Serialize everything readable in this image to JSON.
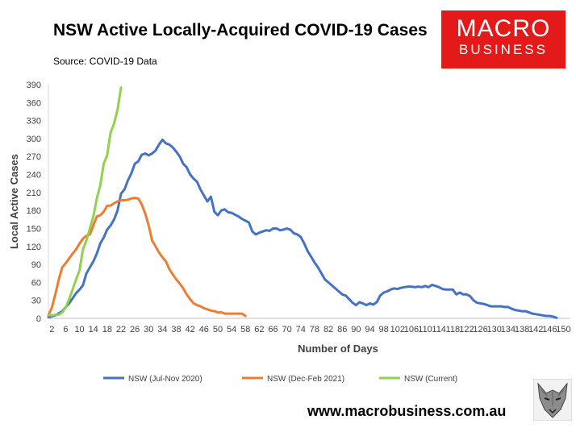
{
  "header": {
    "title": "NSW Active Locally-Acquired COVID-19 Cases",
    "subtitle": "Source: COVID-19 Data"
  },
  "logo": {
    "line1": "MACRO",
    "line2": "BUSINESS"
  },
  "footer": {
    "url": "www.macrobusiness.com.au"
  },
  "chart_data": {
    "type": "line",
    "xlabel": "Number of Days",
    "ylabel": "Local Active Cases",
    "xlim": [
      1,
      152
    ],
    "ylim": [
      0,
      390
    ],
    "y_ticks": [
      0,
      30,
      60,
      90,
      120,
      150,
      180,
      210,
      240,
      270,
      300,
      330,
      360,
      390
    ],
    "x_tick_labels": [
      "2",
      "6",
      "10",
      "14",
      "18",
      "22",
      "26",
      "30",
      "34",
      "38",
      "42",
      "46",
      "50",
      "54",
      "58",
      "62",
      "66",
      "70",
      "74",
      "78",
      "82",
      "86",
      "90",
      "94",
      "98",
      "102",
      "106",
      "110",
      "114",
      "118",
      "122",
      "126",
      "130",
      "134",
      "138",
      "142",
      "146",
      "150"
    ],
    "x_tick_values": [
      2,
      6,
      10,
      14,
      18,
      22,
      26,
      30,
      34,
      38,
      42,
      46,
      50,
      54,
      58,
      62,
      66,
      70,
      74,
      78,
      82,
      86,
      90,
      94,
      98,
      102,
      106,
      110,
      114,
      118,
      122,
      126,
      130,
      134,
      138,
      142,
      146,
      150
    ],
    "grid": false,
    "legend_position": "bottom",
    "series": [
      {
        "name": "NSW (Jul-Nov 2020)",
        "color": "#4472c4",
        "points": [
          [
            1,
            2
          ],
          [
            3,
            5
          ],
          [
            5,
            12
          ],
          [
            7,
            25
          ],
          [
            9,
            42
          ],
          [
            10,
            48
          ],
          [
            11,
            55
          ],
          [
            12,
            75
          ],
          [
            13,
            85
          ],
          [
            14,
            95
          ],
          [
            15,
            108
          ],
          [
            16,
            125
          ],
          [
            17,
            135
          ],
          [
            18,
            148
          ],
          [
            19,
            155
          ],
          [
            20,
            165
          ],
          [
            21,
            180
          ],
          [
            22,
            208
          ],
          [
            23,
            215
          ],
          [
            24,
            230
          ],
          [
            25,
            242
          ],
          [
            26,
            258
          ],
          [
            27,
            262
          ],
          [
            28,
            273
          ],
          [
            29,
            275
          ],
          [
            30,
            272
          ],
          [
            31,
            275
          ],
          [
            32,
            280
          ],
          [
            33,
            290
          ],
          [
            34,
            298
          ],
          [
            35,
            292
          ],
          [
            36,
            290
          ],
          [
            37,
            285
          ],
          [
            38,
            278
          ],
          [
            39,
            270
          ],
          [
            40,
            258
          ],
          [
            41,
            252
          ],
          [
            42,
            240
          ],
          [
            43,
            233
          ],
          [
            44,
            228
          ],
          [
            45,
            215
          ],
          [
            46,
            205
          ],
          [
            47,
            195
          ],
          [
            48,
            203
          ],
          [
            49,
            178
          ],
          [
            50,
            172
          ],
          [
            51,
            180
          ],
          [
            52,
            182
          ],
          [
            53,
            177
          ],
          [
            54,
            176
          ],
          [
            55,
            173
          ],
          [
            56,
            170
          ],
          [
            57,
            166
          ],
          [
            58,
            163
          ],
          [
            59,
            160
          ],
          [
            60,
            145
          ],
          [
            61,
            140
          ],
          [
            62,
            143
          ],
          [
            63,
            145
          ],
          [
            64,
            147
          ],
          [
            65,
            146
          ],
          [
            66,
            150
          ],
          [
            67,
            150
          ],
          [
            68,
            147
          ],
          [
            69,
            148
          ],
          [
            70,
            150
          ],
          [
            71,
            148
          ],
          [
            72,
            142
          ],
          [
            73,
            140
          ],
          [
            74,
            136
          ],
          [
            75,
            125
          ],
          [
            76,
            112
          ],
          [
            77,
            103
          ],
          [
            78,
            93
          ],
          [
            79,
            85
          ],
          [
            80,
            75
          ],
          [
            81,
            65
          ],
          [
            82,
            60
          ],
          [
            83,
            55
          ],
          [
            84,
            50
          ],
          [
            85,
            45
          ],
          [
            86,
            40
          ],
          [
            87,
            38
          ],
          [
            88,
            32
          ],
          [
            89,
            26
          ],
          [
            90,
            22
          ],
          [
            91,
            27
          ],
          [
            92,
            25
          ],
          [
            93,
            22
          ],
          [
            94,
            25
          ],
          [
            95,
            23
          ],
          [
            96,
            27
          ],
          [
            97,
            38
          ],
          [
            98,
            43
          ],
          [
            99,
            45
          ],
          [
            100,
            48
          ],
          [
            101,
            50
          ],
          [
            102,
            49
          ],
          [
            103,
            51
          ],
          [
            104,
            52
          ],
          [
            105,
            53
          ],
          [
            106,
            53
          ],
          [
            107,
            52
          ],
          [
            108,
            53
          ],
          [
            109,
            52
          ],
          [
            110,
            54
          ],
          [
            111,
            52
          ],
          [
            112,
            56
          ],
          [
            113,
            54
          ],
          [
            114,
            52
          ],
          [
            115,
            49
          ],
          [
            116,
            48
          ],
          [
            117,
            48
          ],
          [
            118,
            48
          ],
          [
            119,
            40
          ],
          [
            120,
            43
          ],
          [
            121,
            40
          ],
          [
            122,
            40
          ],
          [
            123,
            37
          ],
          [
            124,
            30
          ],
          [
            125,
            26
          ],
          [
            126,
            25
          ],
          [
            127,
            24
          ],
          [
            128,
            22
          ],
          [
            129,
            20
          ],
          [
            130,
            20
          ],
          [
            131,
            20
          ],
          [
            132,
            20
          ],
          [
            133,
            19
          ],
          [
            134,
            19
          ],
          [
            135,
            16
          ],
          [
            136,
            14
          ],
          [
            137,
            13
          ],
          [
            138,
            12
          ],
          [
            139,
            12
          ],
          [
            140,
            10
          ],
          [
            141,
            8
          ],
          [
            142,
            7
          ],
          [
            143,
            6
          ],
          [
            144,
            5
          ],
          [
            145,
            4
          ],
          [
            146,
            4
          ],
          [
            147,
            3
          ],
          [
            148,
            1
          ]
        ]
      },
      {
        "name": "NSW (Dec-Feb 2021)",
        "color": "#ed7d31",
        "points": [
          [
            1,
            5
          ],
          [
            2,
            18
          ],
          [
            3,
            40
          ],
          [
            4,
            65
          ],
          [
            5,
            85
          ],
          [
            6,
            92
          ],
          [
            7,
            100
          ],
          [
            8,
            108
          ],
          [
            9,
            115
          ],
          [
            10,
            125
          ],
          [
            11,
            133
          ],
          [
            12,
            138
          ],
          [
            13,
            140
          ],
          [
            14,
            155
          ],
          [
            15,
            170
          ],
          [
            16,
            172
          ],
          [
            17,
            178
          ],
          [
            18,
            188
          ],
          [
            19,
            188
          ],
          [
            20,
            192
          ],
          [
            21,
            195
          ],
          [
            22,
            197
          ],
          [
            23,
            197
          ],
          [
            24,
            198
          ],
          [
            25,
            200
          ],
          [
            26,
            201
          ],
          [
            27,
            200
          ],
          [
            28,
            190
          ],
          [
            29,
            175
          ],
          [
            30,
            155
          ],
          [
            31,
            130
          ],
          [
            32,
            120
          ],
          [
            33,
            110
          ],
          [
            34,
            102
          ],
          [
            35,
            95
          ],
          [
            36,
            82
          ],
          [
            37,
            73
          ],
          [
            38,
            65
          ],
          [
            39,
            58
          ],
          [
            40,
            50
          ],
          [
            41,
            40
          ],
          [
            42,
            32
          ],
          [
            43,
            25
          ],
          [
            44,
            22
          ],
          [
            45,
            20
          ],
          [
            46,
            17
          ],
          [
            47,
            15
          ],
          [
            48,
            13
          ],
          [
            49,
            12
          ],
          [
            50,
            10
          ],
          [
            51,
            10
          ],
          [
            52,
            8
          ],
          [
            53,
            8
          ],
          [
            54,
            8
          ],
          [
            55,
            8
          ],
          [
            56,
            8
          ],
          [
            57,
            8
          ],
          [
            58,
            4
          ]
        ]
      },
      {
        "name": "NSW (Current)",
        "color": "#92d050",
        "points": [
          [
            1,
            5
          ],
          [
            2,
            5
          ],
          [
            3,
            6
          ],
          [
            4,
            6
          ],
          [
            5,
            10
          ],
          [
            6,
            18
          ],
          [
            7,
            32
          ],
          [
            8,
            48
          ],
          [
            9,
            65
          ],
          [
            10,
            80
          ],
          [
            11,
            115
          ],
          [
            12,
            130
          ],
          [
            13,
            150
          ],
          [
            14,
            170
          ],
          [
            15,
            200
          ],
          [
            16,
            222
          ],
          [
            17,
            258
          ],
          [
            18,
            272
          ],
          [
            19,
            310
          ],
          [
            20,
            325
          ],
          [
            21,
            348
          ],
          [
            22,
            385
          ]
        ]
      }
    ]
  }
}
